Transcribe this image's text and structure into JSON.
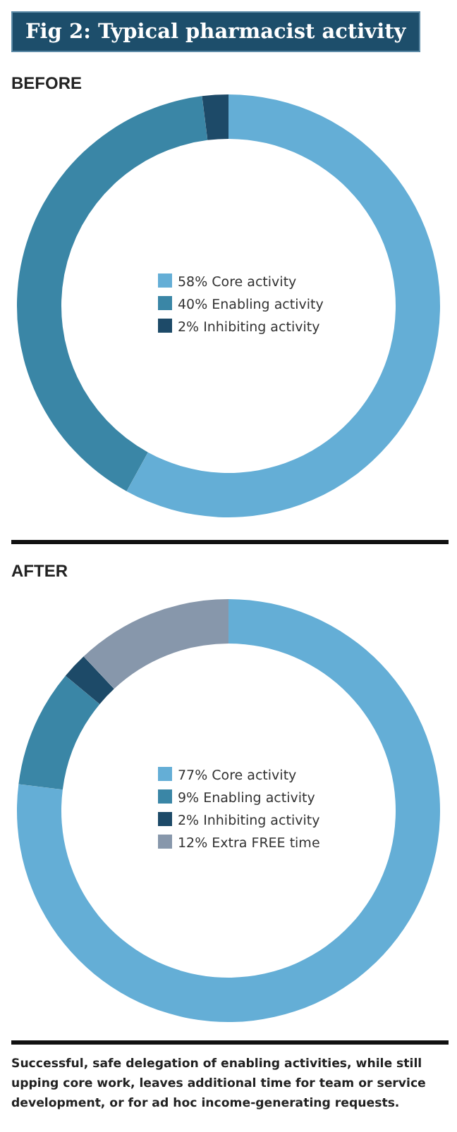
{
  "chart_data": [
    {
      "type": "donut",
      "title": "Fig 2: Typical pharmacist activity",
      "subtitle": "BEFORE",
      "categories": [
        "Core activity",
        "Enabling activity",
        "Inhibiting activity"
      ],
      "values": [
        58,
        40,
        2
      ],
      "colors": [
        "#64aed6",
        "#3a86a6",
        "#1d4a68"
      ],
      "value_labels": [
        "58%",
        "40%",
        "2%"
      ],
      "legend": "center"
    },
    {
      "type": "donut",
      "title": "AFTER",
      "categories": [
        "Core activity",
        "Enabling activity",
        "Inhibiting activity",
        "Extra FREE time"
      ],
      "values": [
        77,
        9,
        2,
        12
      ],
      "colors": [
        "#64aed6",
        "#3a86a6",
        "#1d4a68",
        "#8797ab"
      ],
      "value_labels": [
        "77%",
        "9%",
        "2%",
        "12%"
      ],
      "legend": "center",
      "annotations": [
        "Successful, safe delegation of enabling activities, while still upping core work, leaves additional time for team or service development, or for ad hoc income-generating requests."
      ]
    }
  ]
}
